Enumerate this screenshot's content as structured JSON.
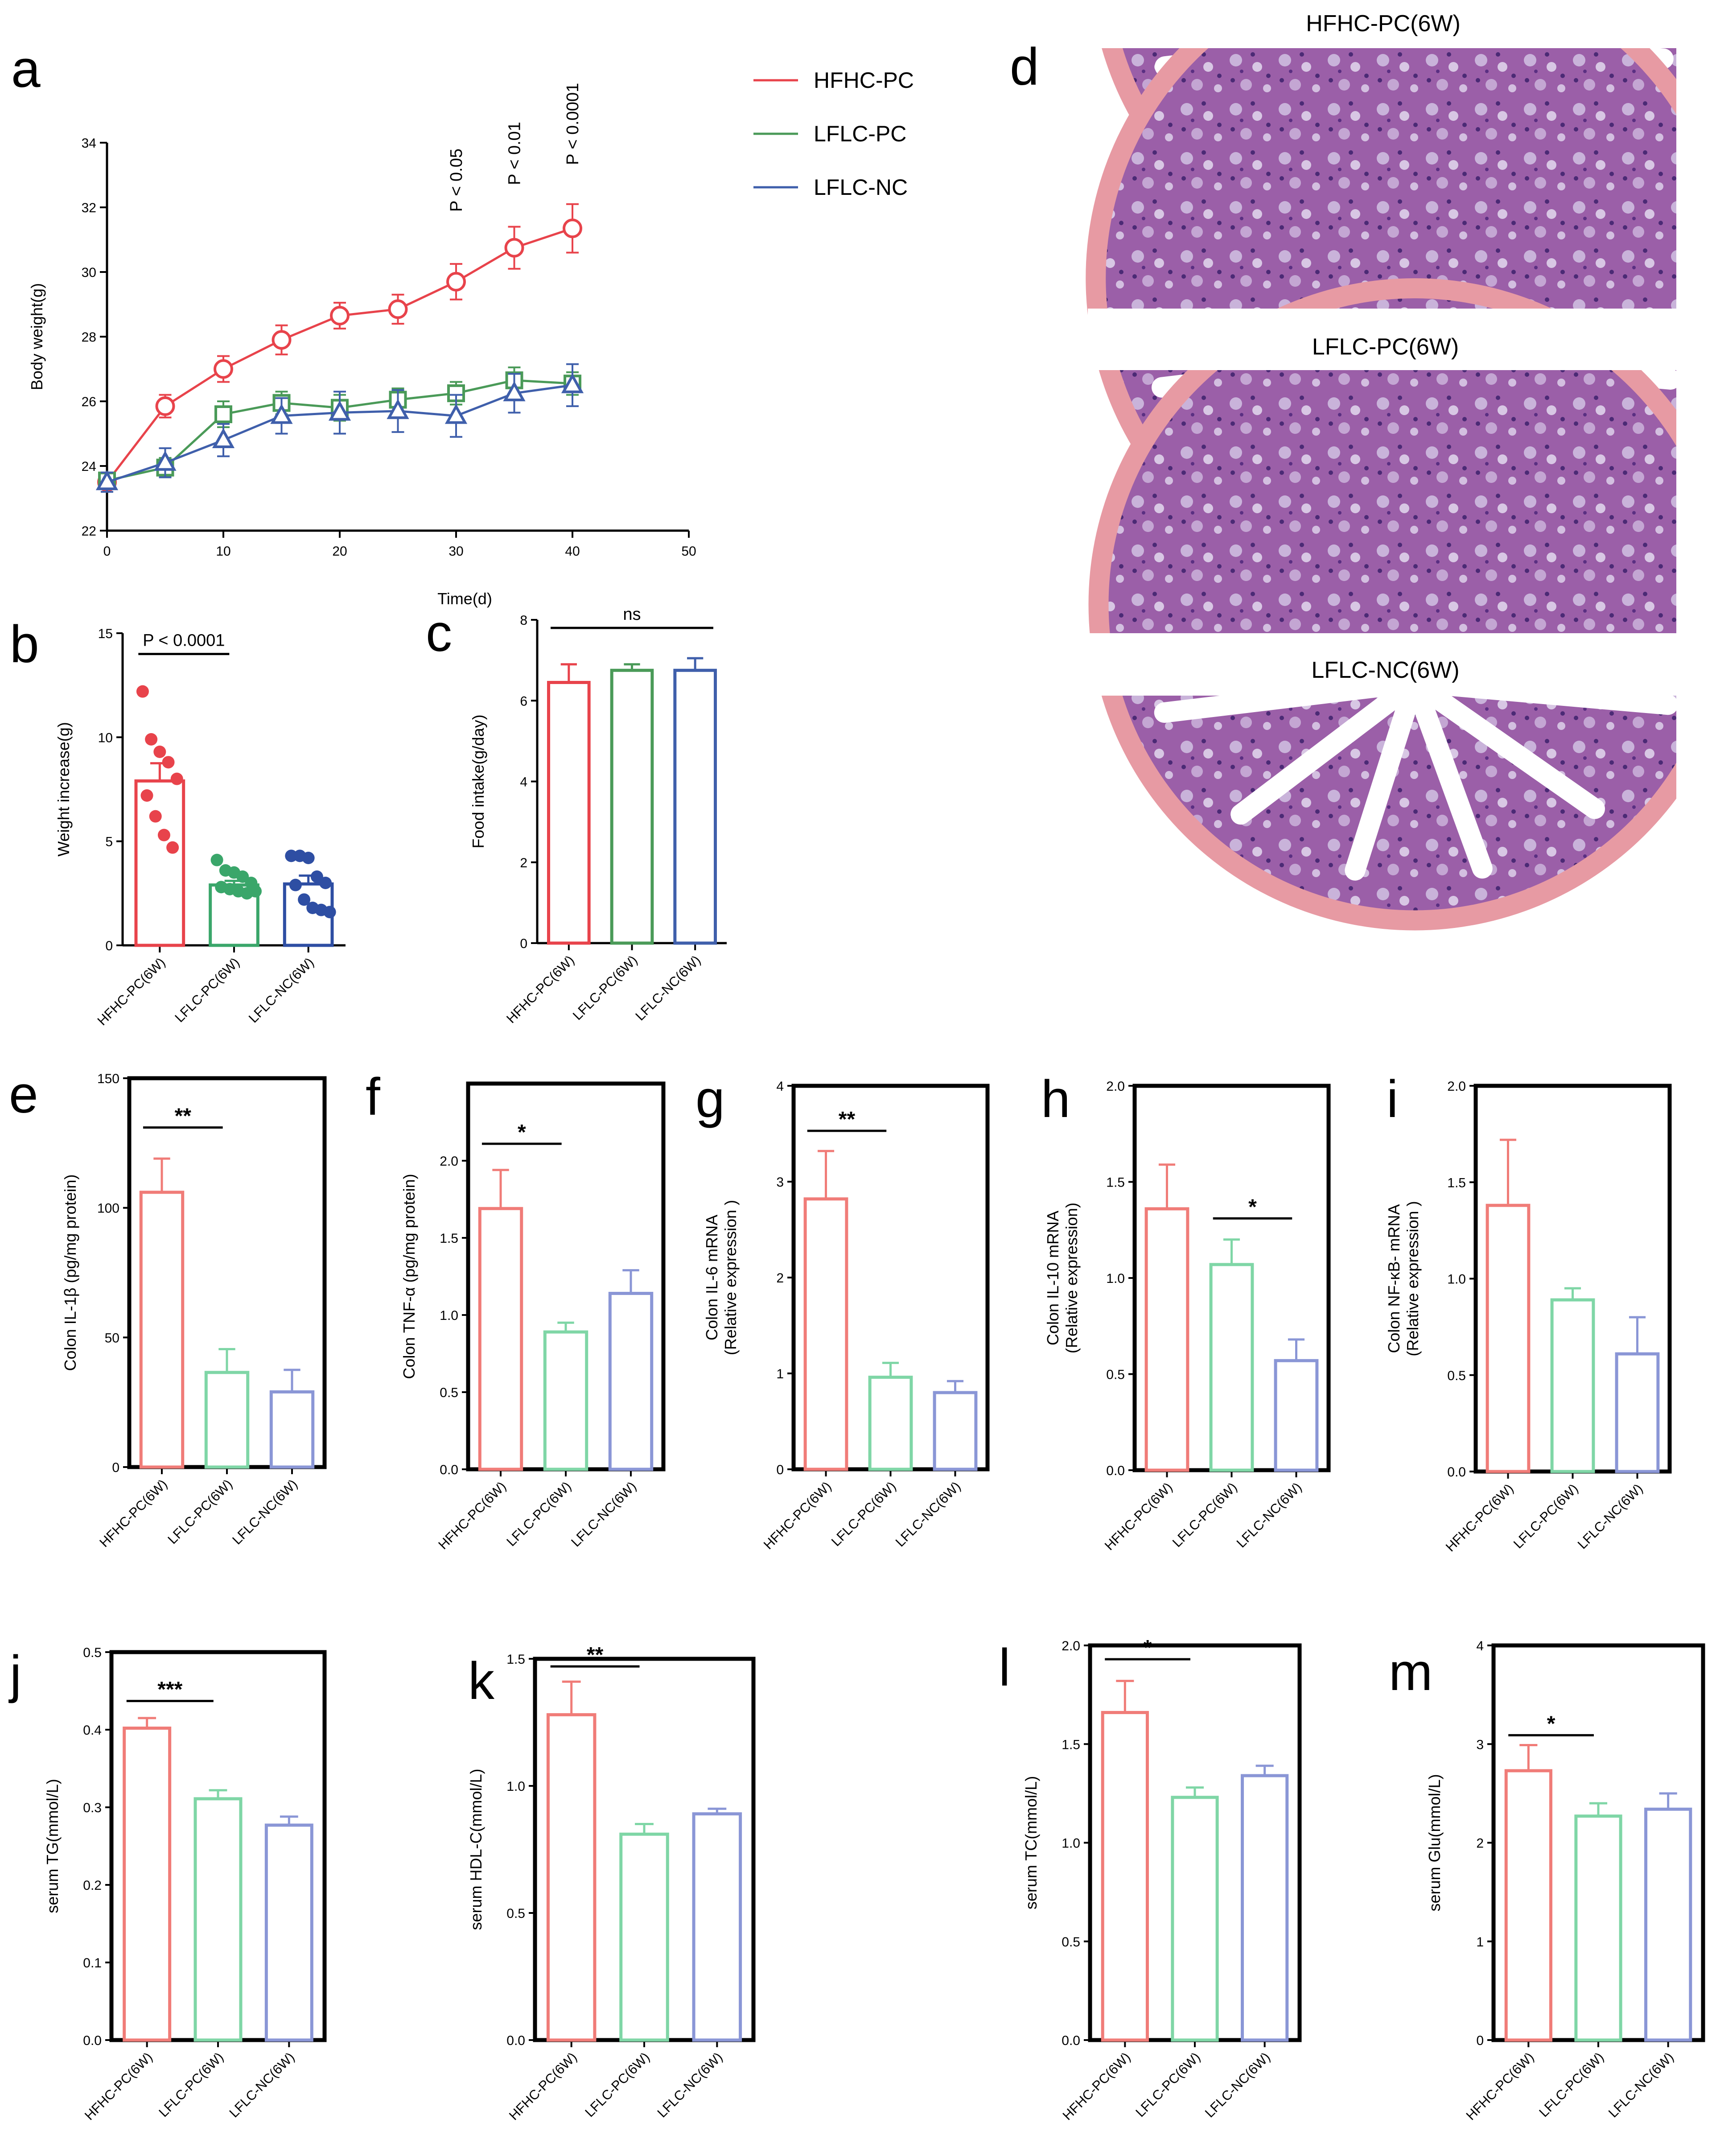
{
  "legend": {
    "entries": [
      {
        "label": "HFHC-PC",
        "color": "#e8434b"
      },
      {
        "label": "LFLC-PC",
        "color": "#4a9a58"
      },
      {
        "label": "LFLC-NC",
        "color": "#3f5fab"
      }
    ]
  },
  "histology": {
    "label": "d",
    "titles": [
      "HFHC-PC(6W)",
      "LFLC-PC(6W)",
      "LFLC-NC(6W)"
    ]
  },
  "chart_data": [
    {
      "id": "a",
      "panel_label": "a",
      "type": "line",
      "title": "",
      "xlabel": "Time(d)",
      "ylabel": "Body weight(g)",
      "xlim": [
        0,
        50
      ],
      "ylim": [
        22,
        34
      ],
      "xticks": [
        0,
        10,
        20,
        30,
        40,
        50
      ],
      "yticks": [
        22,
        24,
        26,
        28,
        30,
        32,
        34
      ],
      "series": [
        {
          "name": "HFHC-PC",
          "color": "#e8434b",
          "marker": "circle",
          "x": [
            0,
            5,
            10,
            15,
            20,
            25,
            30,
            35,
            40
          ],
          "y": [
            23.5,
            25.85,
            27.0,
            27.9,
            28.65,
            28.85,
            29.7,
            30.75,
            31.35
          ],
          "err": [
            0.3,
            0.35,
            0.4,
            0.45,
            0.4,
            0.45,
            0.55,
            0.65,
            0.75
          ]
        },
        {
          "name": "LFLC-PC",
          "color": "#4a9a58",
          "marker": "square",
          "x": [
            0,
            5,
            10,
            15,
            20,
            25,
            30,
            35,
            40
          ],
          "y": [
            23.55,
            23.95,
            25.6,
            25.95,
            25.8,
            26.05,
            26.25,
            26.65,
            26.55
          ],
          "err": [
            0.25,
            0.3,
            0.4,
            0.35,
            0.4,
            0.35,
            0.35,
            0.4,
            0.35
          ]
        },
        {
          "name": "LFLC-NC",
          "color": "#3f5fab",
          "marker": "triangle",
          "x": [
            0,
            5,
            10,
            15,
            20,
            25,
            30,
            35,
            40
          ],
          "y": [
            23.5,
            24.1,
            24.8,
            25.55,
            25.65,
            25.7,
            25.55,
            26.25,
            26.5
          ],
          "err": [
            0.3,
            0.45,
            0.5,
            0.55,
            0.65,
            0.65,
            0.65,
            0.6,
            0.65
          ]
        }
      ],
      "annotations": [
        {
          "text": "P < 0.05",
          "x": 30
        },
        {
          "text": "P < 0.01",
          "x": 35
        },
        {
          "text": "P < 0.0001",
          "x": 40
        }
      ]
    },
    {
      "id": "b",
      "panel_label": "b",
      "type": "bar",
      "ylabel": "Weight increase(g)",
      "ylim": [
        0,
        15
      ],
      "yticks": [
        0,
        5,
        10,
        15
      ],
      "categories": [
        "HFHC-PC(6W)",
        "LFLC-PC(6W)",
        "LFLC-NC(6W)"
      ],
      "colors": [
        "#e8434b",
        "#3aa66a",
        "#2e4ea3"
      ],
      "values": [
        7.9,
        2.9,
        2.95
      ],
      "err": [
        0.85,
        0.2,
        0.4
      ],
      "points": [
        [
          12.2,
          9.9,
          9.3,
          8.8,
          8.0,
          7.2,
          6.2,
          5.3,
          4.7
        ],
        [
          4.1,
          3.6,
          3.5,
          3.3,
          3.0,
          2.8,
          2.7,
          2.6,
          2.5,
          2.6
        ],
        [
          4.3,
          4.3,
          4.2,
          3.3,
          3.0,
          2.9,
          2.2,
          1.8,
          1.7,
          1.6
        ]
      ],
      "sig": [
        {
          "from": 0,
          "to": 1,
          "text": "P < 0.0001",
          "y": 14.0
        }
      ],
      "style": "open-axis"
    },
    {
      "id": "c",
      "panel_label": "c",
      "type": "bar",
      "ylabel": "Food intake(g/day)",
      "ylim": [
        0,
        8
      ],
      "yticks": [
        0,
        2,
        4,
        6,
        8
      ],
      "categories": [
        "HFHC-PC(6W)",
        "LFLC-PC(6W)",
        "LFLC-NC(6W)"
      ],
      "colors": [
        "#e8434b",
        "#4a9a58",
        "#3f5fab"
      ],
      "values": [
        6.45,
        6.75,
        6.75
      ],
      "err": [
        0.45,
        0.15,
        0.3
      ],
      "sig": [
        {
          "from": 0,
          "to": 2,
          "text": "ns",
          "y": 7.8
        }
      ],
      "style": "open-axis"
    },
    {
      "id": "e",
      "panel_label": "e",
      "type": "bar",
      "ylabel": "Colon IL-1β (pg/mg protein)",
      "ylim": [
        0,
        150
      ],
      "yticks": [
        0,
        50,
        100,
        150
      ],
      "categories": [
        "HFHC-PC(6W)",
        "LFLC-PC(6W)",
        "LFLC-NC(6W)"
      ],
      "colors": [
        "#f07c78",
        "#7fd6a6",
        "#8a96d6"
      ],
      "values": [
        106,
        36.5,
        29
      ],
      "err": [
        13,
        9,
        8.5
      ],
      "sig": [
        {
          "from": 0,
          "to": 1,
          "text": "**",
          "y": 131
        }
      ],
      "style": "boxed"
    },
    {
      "id": "f",
      "panel_label": "f",
      "type": "bar",
      "ylabel": "Colon TNF-α (pg/mg protein)",
      "ylim": [
        0,
        2.5
      ],
      "yticks": [
        0.0,
        0.5,
        1.0,
        1.5,
        2.0
      ],
      "categories": [
        "HFHC-PC(6W)",
        "LFLC-PC(6W)",
        "LFLC-NC(6W)"
      ],
      "colors": [
        "#f07c78",
        "#7fd6a6",
        "#8a96d6"
      ],
      "values": [
        1.69,
        0.89,
        1.14
      ],
      "err": [
        0.25,
        0.06,
        0.15
      ],
      "sig": [
        {
          "from": 0,
          "to": 1,
          "text": "*",
          "y": 2.11
        }
      ],
      "style": "boxed"
    },
    {
      "id": "g",
      "panel_label": "g",
      "type": "bar",
      "ylabel": "Colon IL-6 mRNA\n(Relative expression )",
      "ylim": [
        0,
        4
      ],
      "yticks": [
        0,
        1,
        2,
        3,
        4
      ],
      "categories": [
        "HFHC-PC(6W)",
        "LFLC-PC(6W)",
        "LFLC-NC(6W)"
      ],
      "colors": [
        "#f07c78",
        "#7fd6a6",
        "#8a96d6"
      ],
      "values": [
        2.82,
        0.96,
        0.8
      ],
      "err": [
        0.5,
        0.15,
        0.12
      ],
      "sig": [
        {
          "from": 0,
          "to": 1,
          "text": "**",
          "y": 3.53
        }
      ],
      "style": "boxed"
    },
    {
      "id": "h",
      "panel_label": "h",
      "type": "bar",
      "ylabel": "Colon IL-10 mRNA\n(Relative expression)",
      "ylim": [
        0,
        2.0
      ],
      "yticks": [
        0.0,
        0.5,
        1.0,
        1.5,
        2.0
      ],
      "categories": [
        "HFHC-PC(6W)",
        "LFLC-PC(6W)",
        "LFLC-NC(6W)"
      ],
      "colors": [
        "#f07c78",
        "#7fd6a6",
        "#8a96d6"
      ],
      "values": [
        1.36,
        1.07,
        0.57
      ],
      "err": [
        0.23,
        0.13,
        0.11
      ],
      "sig": [
        {
          "from": 1,
          "to": 2,
          "text": "*",
          "y": 1.31
        }
      ],
      "style": "boxed"
    },
    {
      "id": "i",
      "panel_label": "i",
      "type": "bar",
      "ylabel": "Colon NF-κB- mRNA\n(Relative expression )",
      "ylim": [
        0,
        2.0
      ],
      "yticks": [
        0.0,
        0.5,
        1.0,
        1.5,
        2.0
      ],
      "categories": [
        "HFHC-PC(6W)",
        "LFLC-PC(6W)",
        "LFLC-NC(6W)"
      ],
      "colors": [
        "#f07c78",
        "#7fd6a6",
        "#8a96d6"
      ],
      "values": [
        1.38,
        0.89,
        0.61
      ],
      "err": [
        0.34,
        0.06,
        0.19
      ],
      "sig": [],
      "style": "boxed"
    },
    {
      "id": "j",
      "panel_label": "j",
      "type": "bar",
      "ylabel": "serum TG(mmol/L)",
      "ylim": [
        0,
        0.5
      ],
      "yticks": [
        0.0,
        0.1,
        0.2,
        0.3,
        0.4,
        0.5
      ],
      "categories": [
        "HFHC-PC(6W)",
        "LFLC-PC(6W)",
        "LFLC-NC(6W)"
      ],
      "colors": [
        "#f07c78",
        "#7fd6a6",
        "#8a96d6"
      ],
      "values": [
        0.402,
        0.311,
        0.277
      ],
      "err": [
        0.013,
        0.011,
        0.011
      ],
      "sig": [
        {
          "from": 0,
          "to": 1,
          "text": "***",
          "y": 0.437
        }
      ],
      "style": "boxed"
    },
    {
      "id": "k",
      "panel_label": "k",
      "type": "bar",
      "ylabel": "serum HDL-C(mmol/L)",
      "ylim": [
        0,
        1.5
      ],
      "yticks": [
        0.0,
        0.5,
        1.0,
        1.5
      ],
      "categories": [
        "HFHC-PC(6W)",
        "LFLC-PC(6W)",
        "LFLC-NC(6W)"
      ],
      "colors": [
        "#f07c78",
        "#7fd6a6",
        "#8a96d6"
      ],
      "values": [
        1.28,
        0.81,
        0.89
      ],
      "err": [
        0.13,
        0.04,
        0.02
      ],
      "sig": [
        {
          "from": 0,
          "to": 1,
          "text": "**",
          "y": 1.47
        }
      ],
      "style": "boxed"
    },
    {
      "id": "l",
      "panel_label": "l",
      "type": "bar",
      "ylabel": "serum TC(mmol/L)",
      "ylim": [
        0,
        2.0
      ],
      "yticks": [
        0.0,
        0.5,
        1.0,
        1.5,
        2.0
      ],
      "categories": [
        "HFHC-PC(6W)",
        "LFLC-PC(6W)",
        "LFLC-NC(6W)"
      ],
      "colors": [
        "#f07c78",
        "#7fd6a6",
        "#8a96d6"
      ],
      "values": [
        1.66,
        1.23,
        1.34
      ],
      "err": [
        0.16,
        0.05,
        0.05
      ],
      "sig": [
        {
          "from": 0,
          "to": 1,
          "text": "*",
          "y": 1.93
        }
      ],
      "style": "boxed"
    },
    {
      "id": "m",
      "panel_label": "m",
      "type": "bar",
      "ylabel": "serum Glu(mmol/L)",
      "ylim": [
        0,
        4
      ],
      "yticks": [
        0,
        1,
        2,
        3,
        4
      ],
      "categories": [
        "HFHC-PC(6W)",
        "LFLC-PC(6W)",
        "LFLC-NC(6W)"
      ],
      "colors": [
        "#f07c78",
        "#7fd6a6",
        "#8a96d6"
      ],
      "values": [
        2.73,
        2.27,
        2.34
      ],
      "err": [
        0.26,
        0.13,
        0.16
      ],
      "sig": [
        {
          "from": 0,
          "to": 1,
          "text": "*",
          "y": 3.09
        }
      ],
      "style": "boxed"
    }
  ]
}
